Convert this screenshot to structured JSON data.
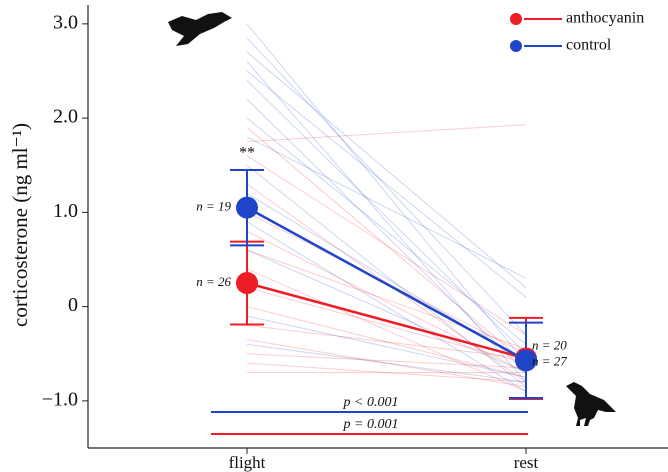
{
  "chart_data": {
    "type": "paired-line",
    "y_label": "corticosterone (ng ml⁻¹)",
    "categories": [
      "flight",
      "rest"
    ],
    "ylim": [
      -1.5,
      3.2
    ],
    "yticks": [
      {
        "value": -1,
        "label": "−1.0"
      },
      0,
      {
        "value": 1,
        "label": "1.0"
      },
      {
        "value": 2,
        "label": "2.0"
      },
      {
        "value": 3,
        "label": "3.0"
      }
    ],
    "series": [
      {
        "name": "anthocyanin",
        "color": "#ee1c25",
        "values": [
          0.25,
          -0.55
        ],
        "errors": [
          0.44,
          0.43
        ],
        "n_labels": [
          "n = 26",
          "n = 27"
        ],
        "p_label": "p = 0.001",
        "individuals": [
          [
            1.75,
            1.93
          ],
          [
            1.9,
            -0.6
          ],
          [
            1.6,
            -0.3
          ],
          [
            1.3,
            -0.8
          ],
          [
            1.0,
            -0.5
          ],
          [
            0.8,
            -0.7
          ],
          [
            0.6,
            -0.45
          ],
          [
            0.4,
            -0.9
          ],
          [
            0.2,
            -0.6
          ],
          [
            0.0,
            -0.75
          ],
          [
            -0.2,
            -0.55
          ],
          [
            -0.35,
            -0.85
          ],
          [
            -0.5,
            -0.65
          ],
          [
            -0.6,
            -0.8
          ],
          [
            -0.7,
            -0.7
          ]
        ]
      },
      {
        "name": "control",
        "color": "#1f45c8",
        "values": [
          1.05,
          -0.57
        ],
        "errors": [
          0.4,
          0.4
        ],
        "n_labels": [
          "n = 19",
          "n = 20"
        ],
        "p_label": "p < 0.001",
        "individuals": [
          [
            3.0,
            -0.6
          ],
          [
            2.85,
            -0.3
          ],
          [
            2.7,
            0.2
          ],
          [
            2.6,
            -0.8
          ],
          [
            2.5,
            0.1
          ],
          [
            2.4,
            -0.5
          ],
          [
            2.2,
            -0.7
          ],
          [
            2.0,
            -0.4
          ],
          [
            1.8,
            0.3
          ],
          [
            1.5,
            -0.85
          ],
          [
            1.2,
            -0.6
          ],
          [
            0.9,
            -0.9
          ],
          [
            0.6,
            -0.7
          ],
          [
            -0.1,
            -0.75
          ],
          [
            -0.4,
            -0.8
          ]
        ]
      }
    ],
    "significance": "**"
  }
}
